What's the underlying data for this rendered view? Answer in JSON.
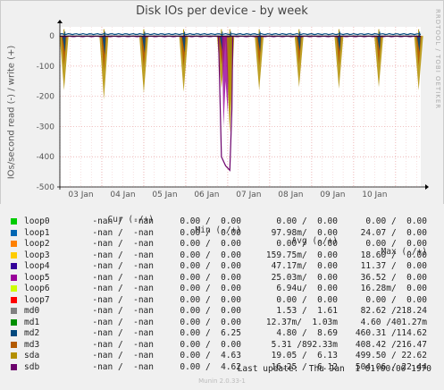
{
  "title": "Disk IOs per device - by week",
  "ylabel": "IOs/second read (-) / write (+)",
  "side_label": "RRDTOOL / TOBI OETIKER",
  "chart_data": {
    "type": "line",
    "title": "Disk IOs per device - by week",
    "ylabel": "IOs/second read (-) / write (+)",
    "xlabel": "",
    "x_ticks": [
      "03 Jan",
      "04 Jan",
      "05 Jan",
      "06 Jan",
      "07 Jan",
      "08 Jan",
      "09 Jan",
      "10 Jan"
    ],
    "y_ticks": [
      0,
      -100,
      -200,
      -300,
      -400,
      -500
    ],
    "ylim": [
      -500,
      30
    ],
    "x_range_days": [
      0,
      8.6
    ],
    "grid": true,
    "series": [
      {
        "name": "loop0",
        "color": "#00cc00",
        "values": []
      },
      {
        "name": "loop1",
        "color": "#0066b3",
        "values": []
      },
      {
        "name": "loop2",
        "color": "#ff8000",
        "values": []
      },
      {
        "name": "loop3",
        "color": "#ffcc00",
        "values": []
      },
      {
        "name": "loop4",
        "color": "#330099",
        "values": []
      },
      {
        "name": "loop5",
        "color": "#990099",
        "values": []
      },
      {
        "name": "loop6",
        "color": "#ccff00",
        "values": []
      },
      {
        "name": "loop7",
        "color": "#ff0000",
        "values": []
      },
      {
        "name": "md0",
        "color": "#808080",
        "values": []
      },
      {
        "name": "md1",
        "color": "#008f00",
        "values": []
      },
      {
        "name": "md2",
        "color": "#00487d",
        "values": []
      },
      {
        "name": "md3",
        "color": "#b35a00",
        "values": []
      },
      {
        "name": "sda",
        "color": "#b38f00",
        "values": [
          [
            0.1,
            -180
          ],
          [
            1.05,
            -210
          ],
          [
            2.0,
            -190
          ],
          [
            2.95,
            -185
          ],
          [
            3.85,
            -175
          ],
          [
            4.05,
            -320
          ],
          [
            4.75,
            -180
          ],
          [
            5.7,
            -170
          ],
          [
            6.65,
            -175
          ],
          [
            7.6,
            -170
          ],
          [
            8.55,
            -180
          ]
        ]
      },
      {
        "name": "sdb",
        "color": "#6b006b",
        "values": [
          [
            3.85,
            -400
          ],
          [
            3.95,
            -430
          ],
          [
            4.05,
            -445
          ]
        ]
      }
    ]
  },
  "legend": {
    "headers": {
      "cur": "Cur (-/+)",
      "min": "Min (-/+)",
      "avg": "Avg (-/+)",
      "max": "Max (-/+)"
    },
    "rows": [
      {
        "name": "loop0",
        "color": "#00cc00",
        "cur": "-nan /  -nan",
        "min": "0.00 /  0.00",
        "avg": "0.00 /  0.00",
        "max": "0.00 /  0.00"
      },
      {
        "name": "loop1",
        "color": "#0066b3",
        "cur": "-nan /  -nan",
        "min": "0.00 /  0.00",
        "avg": "97.98m/  0.00",
        "max": "24.07 /  0.00"
      },
      {
        "name": "loop2",
        "color": "#ff8000",
        "cur": "-nan /  -nan",
        "min": "0.00 /  0.00",
        "avg": "0.00 /  0.00",
        "max": "0.00 /  0.00"
      },
      {
        "name": "loop3",
        "color": "#ffcc00",
        "cur": "-nan /  -nan",
        "min": "0.00 /  0.00",
        "avg": "159.75m/  0.00",
        "max": "18.60 /  0.00"
      },
      {
        "name": "loop4",
        "color": "#330099",
        "cur": "-nan /  -nan",
        "min": "0.00 /  0.00",
        "avg": "47.17m/  0.00",
        "max": "11.37 /  0.00"
      },
      {
        "name": "loop5",
        "color": "#990099",
        "cur": "-nan /  -nan",
        "min": "0.00 /  0.00",
        "avg": "25.03m/  0.00",
        "max": "36.52 /  0.00"
      },
      {
        "name": "loop6",
        "color": "#ccff00",
        "cur": "-nan /  -nan",
        "min": "0.00 /  0.00",
        "avg": "6.94u/  0.00",
        "max": "16.28m/  0.00"
      },
      {
        "name": "loop7",
        "color": "#ff0000",
        "cur": "-nan /  -nan",
        "min": "0.00 /  0.00",
        "avg": "0.00 /  0.00",
        "max": "0.00 /  0.00"
      },
      {
        "name": "md0",
        "color": "#808080",
        "cur": "-nan /  -nan",
        "min": "0.00 /  0.00",
        "avg": "1.53 /  1.61",
        "max": "82.62 /218.24"
      },
      {
        "name": "md1",
        "color": "#008f00",
        "cur": "-nan /  -nan",
        "min": "0.00 /  0.00",
        "avg": "12.37m/  1.03m",
        "max": "4.60 /401.27m"
      },
      {
        "name": "md2",
        "color": "#00487d",
        "cur": "-nan /  -nan",
        "min": "0.00 /  6.25",
        "avg": "4.80 /  8.69",
        "max": "460.31 /114.62"
      },
      {
        "name": "md3",
        "color": "#b35a00",
        "cur": "-nan /  -nan",
        "min": "0.00 /  0.00",
        "avg": "5.31 /892.33m",
        "max": "408.42 /216.47"
      },
      {
        "name": "sda",
        "color": "#b38f00",
        "cur": "-nan /  -nan",
        "min": "0.00 /  4.63",
        "avg": "19.05 /  6.13",
        "max": "499.50 / 22.62"
      },
      {
        "name": "sdb",
        "color": "#6b006b",
        "cur": "-nan /  -nan",
        "min": "0.00 /  4.62",
        "avg": "16.25 /  6.12",
        "max": "504.06 / 22.44"
      }
    ]
  },
  "last_update": "Last update:  Thu Jan  1 01:00:00 1970",
  "munin_version": "Munin 2.0.33-1"
}
